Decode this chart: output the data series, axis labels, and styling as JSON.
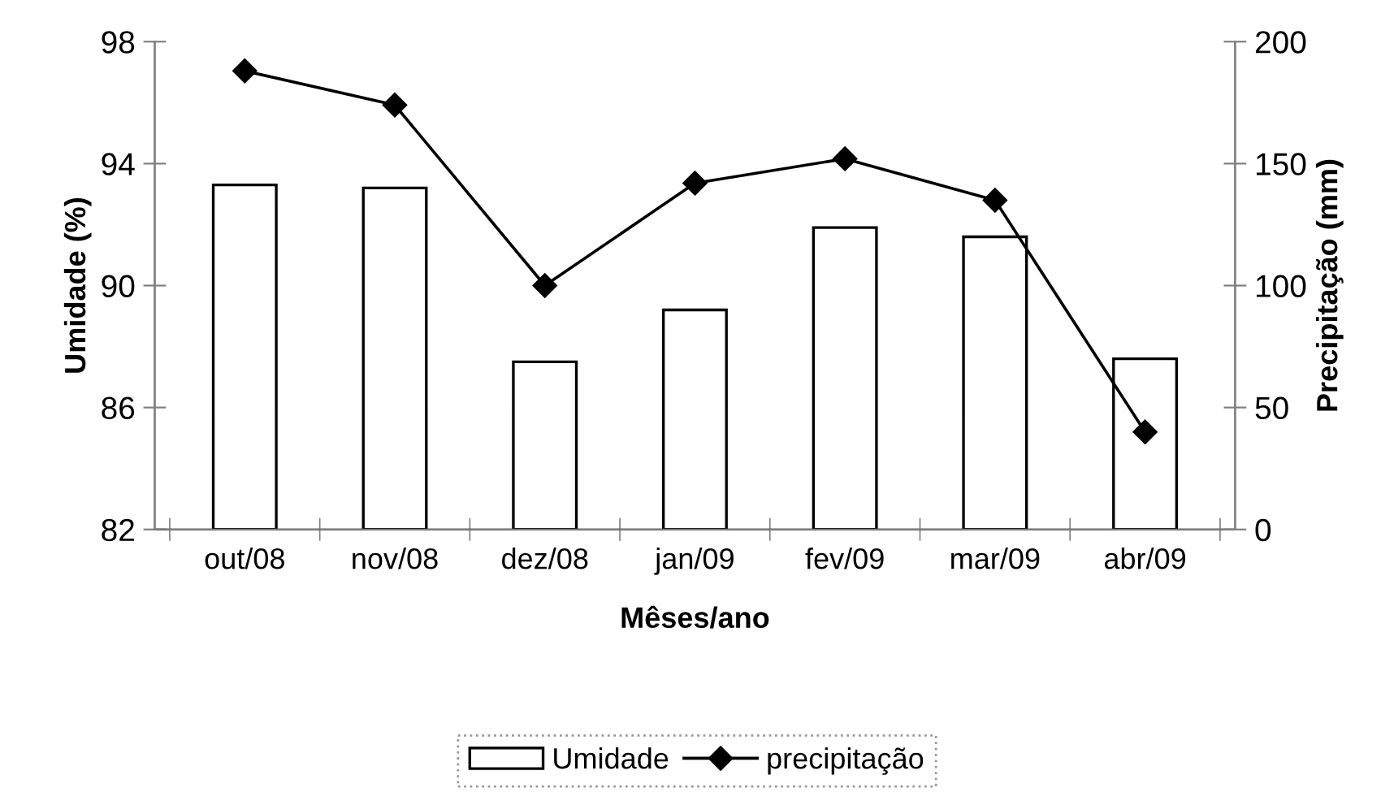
{
  "chart_data": {
    "type": "bar",
    "xlabel": "Mêses/ano",
    "ylabel": "Umidade (%)",
    "y2label": "Precipitação (mm)",
    "categories": [
      "out/08",
      "nov/08",
      "dez/08",
      "jan/09",
      "fev/09",
      "mar/09",
      "abr/09"
    ],
    "series": [
      {
        "name": "Umidade",
        "color": "#ffffff",
        "values": [
          93.3,
          93.2,
          87.5,
          89.2,
          91.9,
          91.6,
          87.6
        ]
      },
      {
        "name": "precipitação",
        "type": "line",
        "axis": "y2",
        "color": "#000000",
        "marker": "diamond",
        "values": [
          188,
          174,
          100,
          142,
          152,
          135,
          40
        ]
      }
    ],
    "ylim": [
      82,
      98
    ],
    "yticks": [
      82,
      86,
      90,
      94,
      98
    ],
    "y2lim": [
      0,
      200
    ],
    "y2ticks": [
      0,
      50,
      100,
      150,
      200
    ],
    "grid": false,
    "legend": "bottom"
  }
}
